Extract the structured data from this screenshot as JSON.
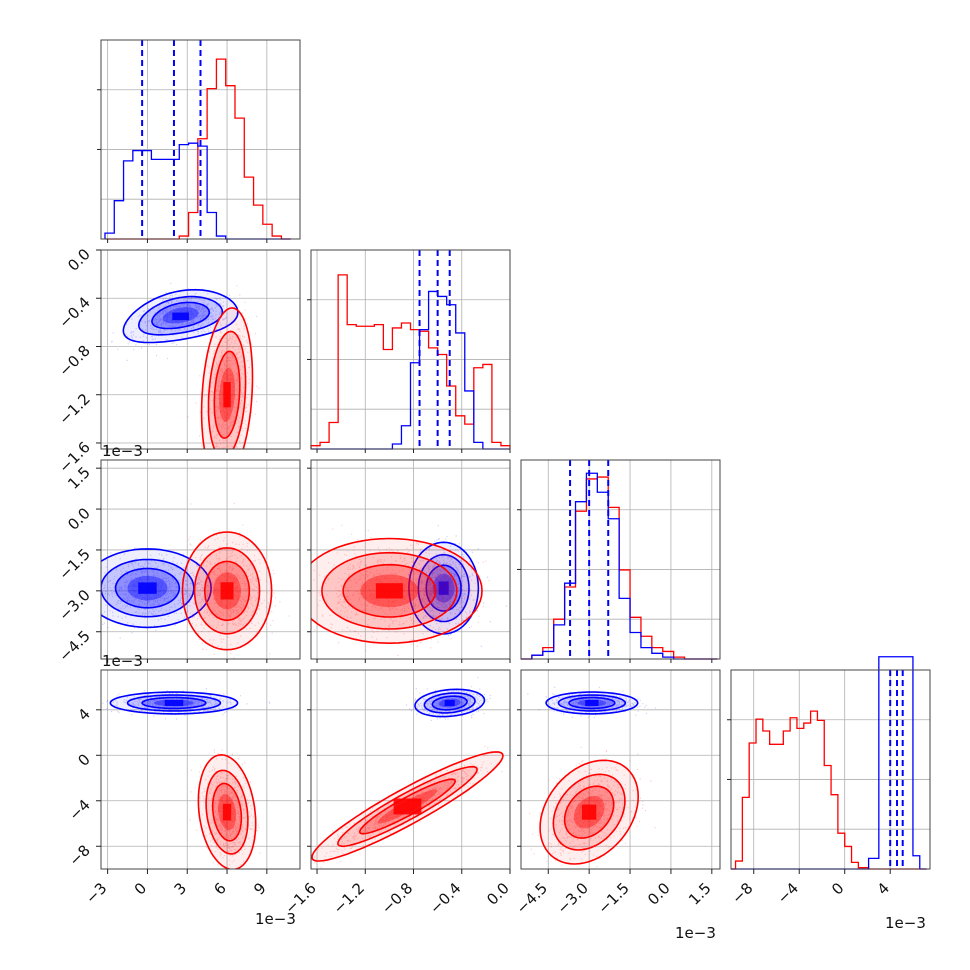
{
  "colors": {
    "blue": "#0000ff",
    "red": "#ff0000"
  },
  "chart_data": {
    "type": "corner",
    "n_params": 4,
    "grid": true,
    "multipliers": {
      "col0": "1e−3",
      "col1": "1e−3",
      "col2": "1e−3",
      "col3": "1e−3",
      "row1": "1e−3",
      "row2": "1e−3"
    },
    "axes": [
      {
        "range": [
          -3.5,
          11.5
        ],
        "ticks": [
          -3,
          0,
          3,
          6,
          9
        ],
        "tick_labels": [
          "−3",
          "0",
          "3",
          "6",
          "9"
        ]
      },
      {
        "range": [
          -1.65,
          0.0
        ],
        "ticks": [
          -1.6,
          -1.2,
          -0.8,
          -0.4,
          0.0
        ],
        "tick_labels": [
          "−1.6",
          "−1.2",
          "−0.8",
          "−0.4",
          "0.0"
        ]
      },
      {
        "range": [
          -5.5,
          1.8
        ],
        "ticks": [
          -4.5,
          -3.0,
          -1.5,
          0.0,
          1.5
        ],
        "tick_labels": [
          "−4.5",
          "−3.0",
          "−1.5",
          "0.0",
          "1.5"
        ]
      },
      {
        "range": [
          -10.0,
          7.5
        ],
        "ticks": [
          -8,
          -4,
          0,
          4
        ],
        "tick_labels": [
          "−8",
          "−4",
          "0",
          "4"
        ]
      }
    ],
    "hist_ymax": [
      1.35,
      1.2,
      1.05,
      1.5
    ],
    "histograms": [
      {
        "edges": [
          -3.2,
          -2.5,
          -1.8,
          -1.1,
          -0.4,
          0.3,
          1.0,
          1.7,
          2.4,
          3.1,
          3.8,
          4.5,
          5.2,
          5.9,
          6.6,
          7.3,
          8.0,
          8.7,
          9.4,
          10.1,
          10.8
        ],
        "blue": [
          0.04,
          0.26,
          0.53,
          0.6,
          0.6,
          0.54,
          0.54,
          0.54,
          0.64,
          0.65,
          0.63,
          0.18,
          0.02,
          0,
          0,
          0,
          0,
          0,
          0,
          0
        ],
        "red": [
          0,
          0,
          0,
          0,
          0,
          0,
          0,
          0,
          0.02,
          0.18,
          0.68,
          1.02,
          1.22,
          1.04,
          0.82,
          0.42,
          0.23,
          0.1,
          0.02,
          0
        ],
        "blue_quantiles": [
          -0.4,
          2.0,
          4.0
        ]
      },
      {
        "edges": [
          -1.65,
          -1.575,
          -1.5,
          -1.425,
          -1.35,
          -1.275,
          -1.2,
          -1.125,
          -1.05,
          -0.975,
          -0.9,
          -0.825,
          -0.75,
          -0.675,
          -0.6,
          -0.525,
          -0.45,
          -0.375,
          -0.3,
          -0.225,
          -0.15,
          -0.075,
          0.0
        ],
        "red": [
          0.02,
          0.04,
          0.16,
          1.05,
          0.75,
          0.74,
          0.74,
          0.75,
          0.6,
          0.73,
          0.76,
          0.72,
          0.71,
          0.61,
          0.57,
          0.38,
          0.2,
          0.15,
          0.49,
          0.51,
          0.04,
          0.02
        ],
        "blue": [
          0,
          0,
          0,
          0,
          0,
          0,
          0,
          0,
          0,
          0.03,
          0.14,
          0.52,
          0.72,
          0.95,
          0.92,
          0.87,
          0.7,
          0.35,
          0.04,
          0,
          0,
          0
        ],
        "blue_quantiles": [
          -0.75,
          -0.6,
          -0.5
        ]
      },
      {
        "edges": [
          -5.5,
          -5.1,
          -4.7,
          -4.3,
          -3.9,
          -3.5,
          -3.1,
          -2.7,
          -2.3,
          -1.9,
          -1.5,
          -1.1,
          -0.7,
          -0.3,
          0.1,
          0.5,
          0.9,
          1.3,
          1.7
        ],
        "red": [
          0,
          0.02,
          0.06,
          0.21,
          0.38,
          0.78,
          0.95,
          0.96,
          0.8,
          0.47,
          0.22,
          0.12,
          0.06,
          0.04,
          0.01,
          0,
          0,
          0
        ],
        "blue": [
          0,
          0.02,
          0.04,
          0.18,
          0.4,
          0.83,
          0.98,
          0.88,
          0.74,
          0.32,
          0.14,
          0.06,
          0.03,
          0.01,
          0,
          0,
          0,
          0
        ],
        "blue_quantiles": [
          -3.7,
          -3.0,
          -2.3
        ]
      },
      {
        "edges": [
          -10.0,
          -9.6,
          -9.0,
          -8.4,
          -7.8,
          -7.2,
          -6.6,
          -6.0,
          -5.4,
          -4.8,
          -4.2,
          -3.6,
          -3.0,
          -2.4,
          -1.8,
          -1.2,
          -0.6,
          0.0,
          0.6,
          1.2,
          2.1,
          3.0,
          3.6,
          4.2,
          4.8,
          5.4,
          6.0,
          6.6,
          7.2
        ],
        "red": [
          0,
          0.06,
          0.54,
          0.95,
          1.13,
          1.04,
          0.94,
          0.94,
          1.04,
          1.14,
          1.06,
          1.1,
          1.19,
          1.12,
          0.78,
          0.56,
          0.27,
          0.17,
          0.05,
          0.01,
          0,
          0,
          0,
          0,
          0,
          0,
          0,
          0
        ],
        "blue": [
          0,
          0,
          0,
          0,
          0,
          0,
          0,
          0,
          0,
          0,
          0,
          0,
          0,
          0,
          0,
          0,
          0,
          0,
          0,
          0,
          0.08,
          1.6,
          1.6,
          1.6,
          1.6,
          1.6,
          0.1,
          0
        ],
        "blue_quantiles": [
          4.0,
          4.6,
          5.1
        ]
      }
    ],
    "scatter_2d": [
      {
        "pair": [
          0,
          1
        ],
        "blue": {
          "mode": [
            2.5,
            -0.55
          ],
          "sd": [
            1.8,
            0.09
          ],
          "corr": 0.35,
          "bend": -0.2
        },
        "red": {
          "mode": [
            6.0,
            -1.2
          ],
          "sd": [
            0.8,
            0.3
          ],
          "corr": 0.2
        }
      },
      {
        "pair": [
          0,
          2
        ],
        "blue": {
          "mode": [
            0.0,
            -2.9
          ],
          "sd": [
            2.0,
            0.6
          ],
          "corr": 0.0
        },
        "red": {
          "mode": [
            6.0,
            -3.0
          ],
          "sd": [
            1.4,
            0.9
          ],
          "corr": 0.0
        }
      },
      {
        "pair": [
          1,
          2
        ],
        "blue": {
          "mode": [
            -0.55,
            -2.9
          ],
          "sd": [
            0.12,
            0.7
          ],
          "corr": 0.0
        },
        "red": {
          "mode": [
            -1.0,
            -3.0
          ],
          "sd": [
            0.32,
            0.8
          ],
          "corr": 0.0
        }
      },
      {
        "pair": [
          0,
          3
        ],
        "blue": {
          "mode": [
            2.0,
            4.6
          ],
          "sd": [
            2.0,
            0.4
          ],
          "corr": 0.0
        },
        "red": {
          "mode": [
            6.0,
            -5.0
          ],
          "sd": [
            0.9,
            2.1
          ],
          "corr": -0.2
        }
      },
      {
        "pair": [
          1,
          3
        ],
        "blue": {
          "mode": [
            -0.5,
            4.6
          ],
          "sd": [
            0.12,
            0.5
          ],
          "corr": 0.2
        },
        "red": {
          "mode": [
            -0.85,
            -4.5
          ],
          "sd": [
            0.33,
            2.0
          ],
          "corr": 0.93
        }
      },
      {
        "pair": [
          2,
          3
        ],
        "blue": {
          "mode": [
            -2.9,
            4.6
          ],
          "sd": [
            0.7,
            0.4
          ],
          "corr": 0.0
        },
        "red": {
          "mode": [
            -3.0,
            -5.0
          ],
          "sd": [
            0.75,
            1.9
          ],
          "corr": 0.3
        }
      }
    ]
  }
}
